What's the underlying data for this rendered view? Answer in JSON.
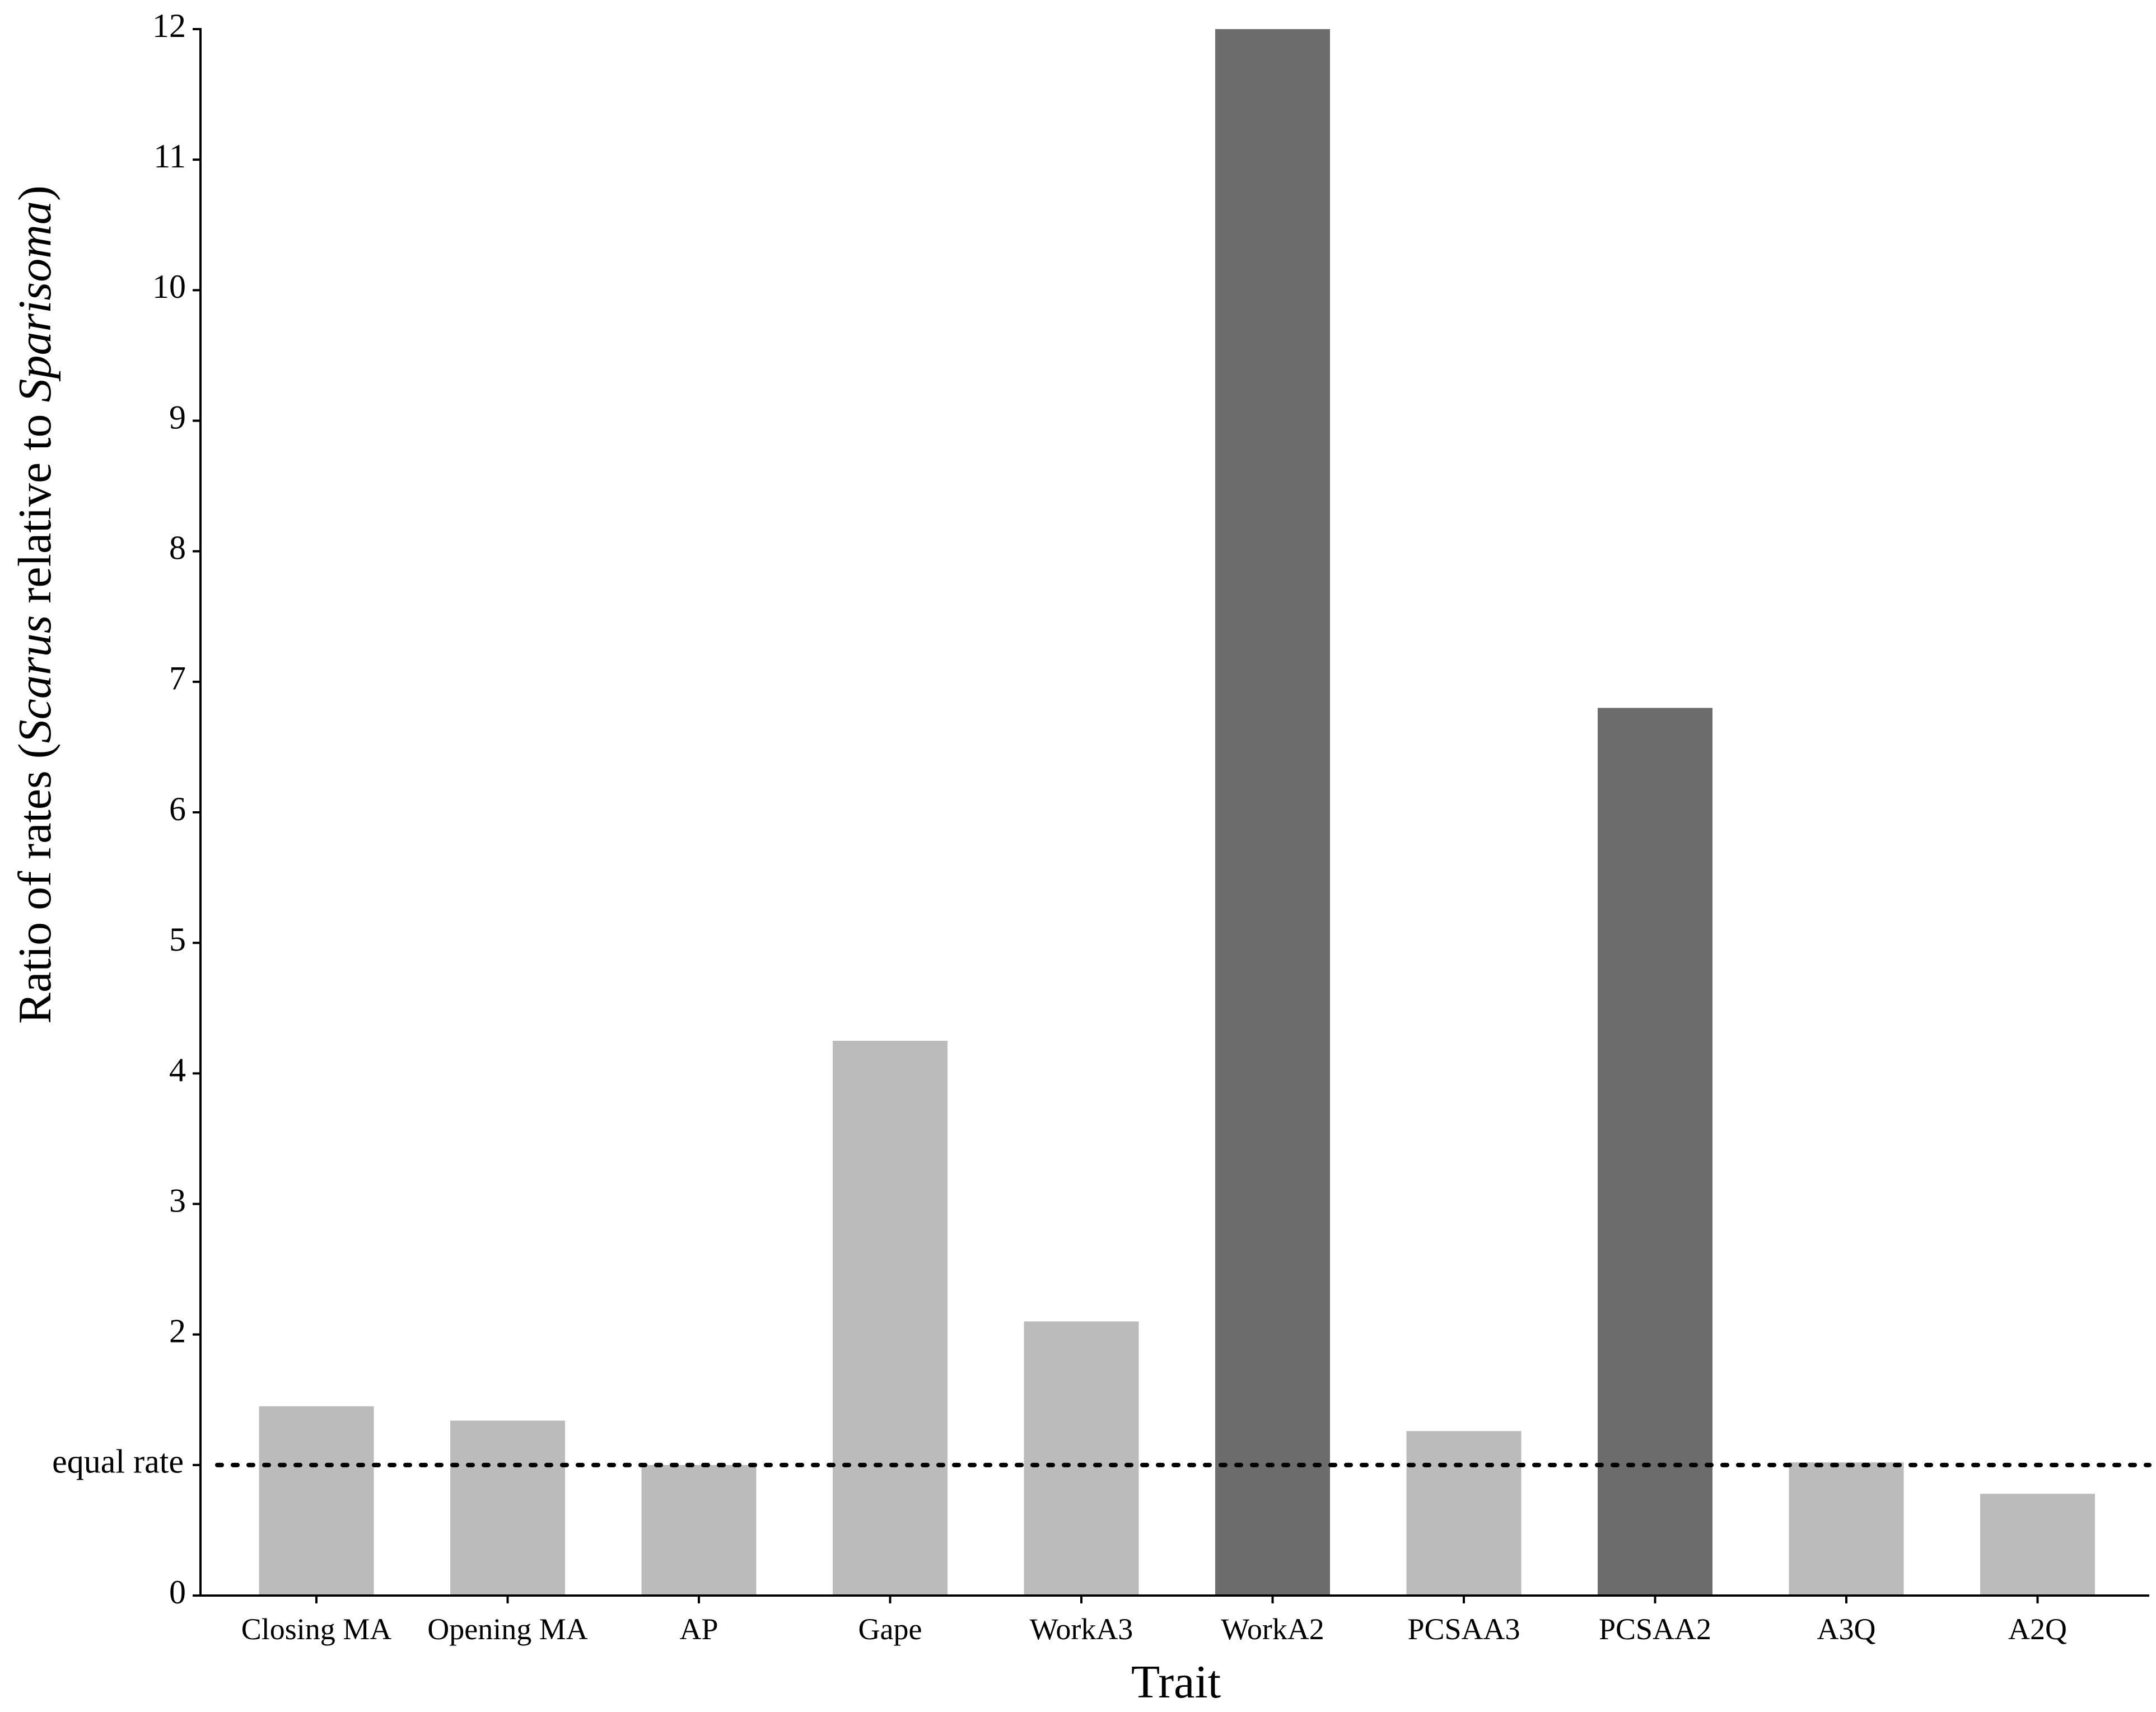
{
  "chart_data": {
    "type": "bar",
    "xlabel": "Trait",
    "ylabel_parts": [
      {
        "text": "Ratio of rates (",
        "italic": false
      },
      {
        "text": "Scarus",
        "italic": true
      },
      {
        "text": " relative to ",
        "italic": false
      },
      {
        "text": "Sparisoma",
        "italic": true
      },
      {
        "text": ")",
        "italic": false
      }
    ],
    "categories": [
      "Closing MA",
      "Opening MA",
      "AP",
      "Gape",
      "WorkA3",
      "WorkA2",
      "PCSAA3",
      "PCSAA2",
      "A3Q",
      "A2Q"
    ],
    "values": [
      1.45,
      1.34,
      1.0,
      4.25,
      2.1,
      12.0,
      1.26,
      6.8,
      1.02,
      0.78
    ],
    "highlighted": [
      false,
      false,
      false,
      false,
      false,
      true,
      false,
      true,
      false,
      false
    ],
    "ylim": [
      0,
      12
    ],
    "yticks": [
      0,
      1,
      2,
      3,
      4,
      5,
      6,
      7,
      8,
      9,
      10,
      11,
      12
    ],
    "ytick_labels": [
      "0",
      "",
      "2",
      "3",
      "4",
      "5",
      "6",
      "7",
      "8",
      "9",
      "10",
      "11",
      "12"
    ],
    "reference_line": {
      "value": 1,
      "label": "equal rate",
      "style": "dotted"
    },
    "colors": {
      "bar": "#bbbbbb",
      "highlight": "#6c6c6c",
      "axis": "#000000"
    },
    "grid": false,
    "legend": "none"
  }
}
